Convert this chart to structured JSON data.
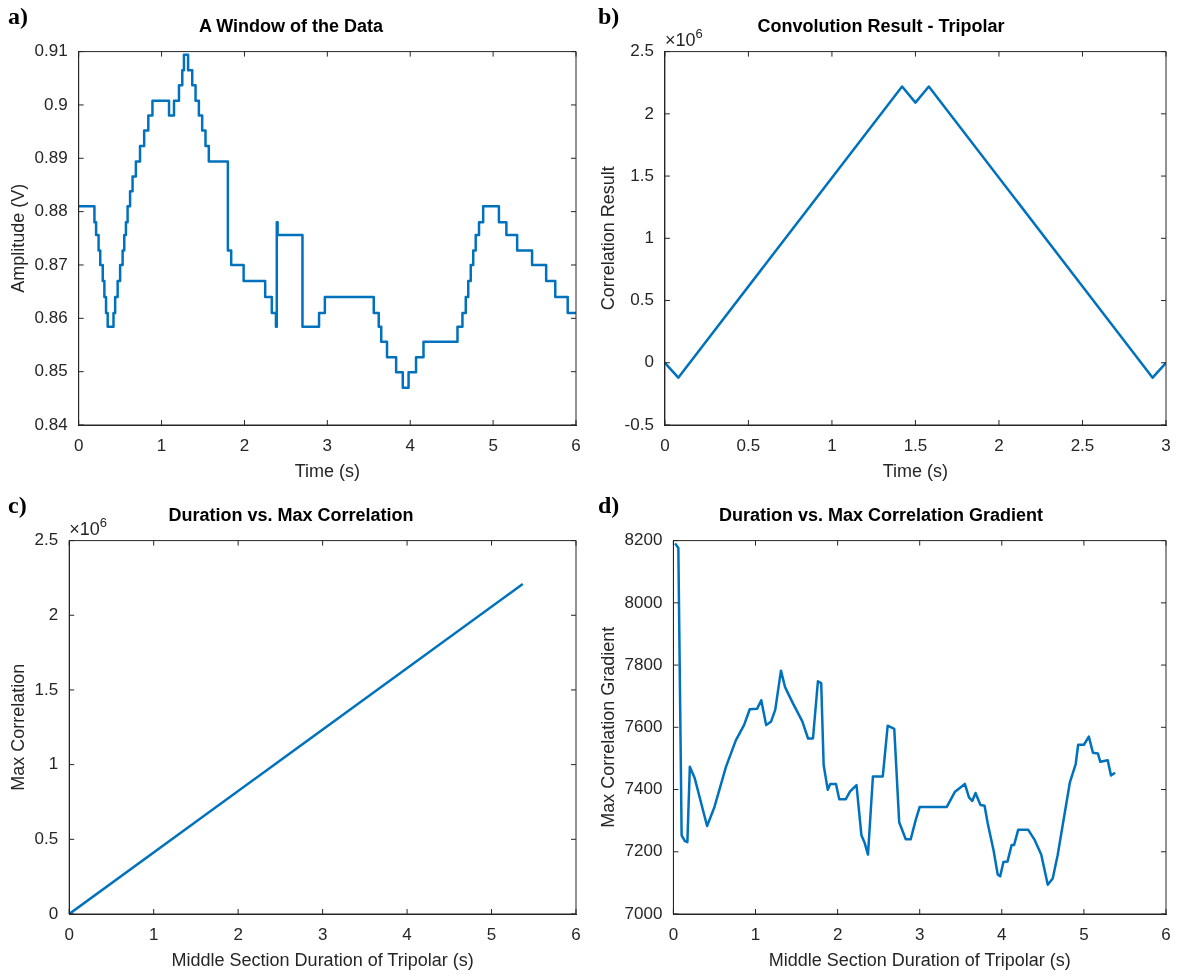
{
  "chart_data": [
    {
      "type": "step",
      "title": "A Window of the Data",
      "xlabel": "Time (s)",
      "ylabel": "Amplitude (V)",
      "annotations": [
        "a)"
      ],
      "color": "#0072bd",
      "x": [
        0,
        0.19,
        0.21,
        0.24,
        0.26,
        0.29,
        0.31,
        0.33,
        0.35,
        0.42,
        0.44,
        0.47,
        0.5,
        0.53,
        0.55,
        0.57,
        0.59,
        0.62,
        0.65,
        0.69,
        0.74,
        0.79,
        0.84,
        0.89,
        1.09,
        1.15,
        1.21,
        1.25,
        1.27,
        1.32,
        1.37,
        1.41,
        1.45,
        1.49,
        1.53,
        1.57,
        1.8,
        1.84,
        1.99,
        2.25,
        2.33,
        2.38,
        2.39,
        2.4,
        2.7,
        2.9,
        2.97,
        3.56,
        3.62,
        3.65,
        3.72,
        3.83,
        3.91,
        3.98,
        4.07,
        4.16,
        4.57,
        4.63,
        4.67,
        4.7,
        4.73,
        4.76,
        4.79,
        4.83,
        4.88,
        5.07,
        5.16,
        5.29,
        5.47,
        5.64,
        5.75,
        5.9,
        6
      ],
      "values": [
        0.881,
        0.878,
        0.8756,
        0.8727,
        0.87,
        0.867,
        0.864,
        0.861,
        0.8584,
        0.861,
        0.864,
        0.867,
        0.87,
        0.8727,
        0.8756,
        0.878,
        0.881,
        0.8838,
        0.8866,
        0.8894,
        0.8923,
        0.8952,
        0.898,
        0.9008,
        0.898,
        0.9008,
        0.9037,
        0.9065,
        0.9094,
        0.9065,
        0.9037,
        0.9008,
        0.898,
        0.8952,
        0.8923,
        0.8894,
        0.8727,
        0.87,
        0.867,
        0.864,
        0.861,
        0.8584,
        0.878,
        0.8756,
        0.8584,
        0.861,
        0.864,
        0.861,
        0.8584,
        0.8556,
        0.8527,
        0.8499,
        0.847,
        0.8499,
        0.8527,
        0.8556,
        0.8584,
        0.861,
        0.864,
        0.867,
        0.87,
        0.8727,
        0.8756,
        0.878,
        0.881,
        0.878,
        0.8756,
        0.8727,
        0.87,
        0.867,
        0.864,
        0.861,
        0.861
      ],
      "xlim": [
        0,
        6
      ],
      "xticks": [
        0,
        1,
        2,
        3,
        4,
        5,
        6
      ],
      "ylim": [
        0.84,
        0.91
      ],
      "yticks": [
        0.84,
        0.85,
        0.86,
        0.87,
        0.88,
        0.89,
        0.9,
        0.91
      ]
    },
    {
      "type": "line",
      "title": "Convolution Result - Tripolar",
      "xlabel": "Time (s)",
      "ylabel": "Correlation Result",
      "annotations": [
        "b)",
        "×10$^{6}$"
      ],
      "color": "#0072bd",
      "x": [
        0,
        0.08,
        1.42,
        1.5,
        1.58,
        2.92,
        3
      ],
      "values": [
        0,
        -0.12,
        2.22,
        2.09,
        2.22,
        -0.12,
        0
      ],
      "xlim": [
        0,
        3
      ],
      "xticks": [
        0,
        0.5,
        1,
        1.5,
        2,
        2.5,
        3
      ],
      "ylim": [
        -0.5,
        2.5
      ],
      "yticks": [
        -0.5,
        0,
        0.5,
        1,
        1.5,
        2,
        2.5
      ]
    },
    {
      "type": "line",
      "title": "Duration vs. Max Correlation",
      "xlabel": "Middle Section Duration of Tripolar (s)",
      "ylabel": "Max Correlation",
      "annotations": [
        "c)",
        "×10$^{6}$"
      ],
      "color": "#0072bd",
      "x": [
        0,
        5.37
      ],
      "values": [
        0,
        2.21
      ],
      "xlim": [
        0,
        6
      ],
      "xticks": [
        0,
        1,
        2,
        3,
        4,
        5,
        6
      ],
      "ylim": [
        0,
        2.5
      ],
      "yticks": [
        0,
        0.5,
        1,
        1.5,
        2,
        2.5
      ]
    },
    {
      "type": "line",
      "title": "Duration vs. Max Correlation Gradient",
      "xlabel": "Middle Section Duration of Tripolar (s)",
      "ylabel": "Max Correlation Gradient",
      "annotations": [
        "d)"
      ],
      "color": "#0072bd",
      "x": [
        0.02,
        0.06,
        0.1,
        0.14,
        0.17,
        0.2,
        0.26,
        0.41,
        0.5,
        0.64,
        0.76,
        0.86,
        0.93,
        1.02,
        1.07,
        1.13,
        1.19,
        1.24,
        1.31,
        1.36,
        1.45,
        1.57,
        1.64,
        1.7,
        1.76,
        1.8,
        1.83,
        1.88,
        1.91,
        1.98,
        2.02,
        2.1,
        2.15,
        2.23,
        2.29,
        2.33,
        2.37,
        2.43,
        2.55,
        2.61,
        2.69,
        2.75,
        2.83,
        2.89,
        2.95,
        3,
        3.33,
        3.43,
        3.55,
        3.6,
        3.64,
        3.68,
        3.74,
        3.79,
        3.83,
        3.9,
        3.95,
        3.98,
        4.02,
        4.07,
        4.12,
        4.15,
        4.2,
        4.32,
        4.4,
        4.48,
        4.56,
        4.62,
        4.68,
        4.83,
        4.9,
        4.93,
        5,
        5.06,
        5.11,
        5.17,
        5.2,
        5.29,
        5.33,
        5.38
      ],
      "values": [
        8191,
        8176,
        7253,
        7234,
        7231,
        7473,
        7436,
        7283,
        7344,
        7473,
        7558,
        7607,
        7658,
        7660,
        7687,
        7607,
        7619,
        7656,
        7782,
        7729,
        7680,
        7619,
        7564,
        7564,
        7748,
        7742,
        7479,
        7399,
        7418,
        7418,
        7369,
        7369,
        7393,
        7414,
        7253,
        7228,
        7191,
        7442,
        7442,
        7605,
        7595,
        7295,
        7240,
        7240,
        7301,
        7344,
        7344,
        7393,
        7418,
        7375,
        7363,
        7389,
        7350,
        7348,
        7289,
        7204,
        7127,
        7121,
        7167,
        7169,
        7222,
        7222,
        7271,
        7271,
        7238,
        7191,
        7094,
        7114,
        7189,
        7424,
        7482,
        7544,
        7544,
        7570,
        7518,
        7516,
        7489,
        7494,
        7445,
        7454
      ],
      "xlim": [
        0,
        6
      ],
      "xticks": [
        0,
        1,
        2,
        3,
        4,
        5,
        6
      ],
      "ylim": [
        7000,
        8200
      ],
      "yticks": [
        7000,
        7200,
        7400,
        7600,
        7800,
        8000,
        8200
      ]
    }
  ]
}
